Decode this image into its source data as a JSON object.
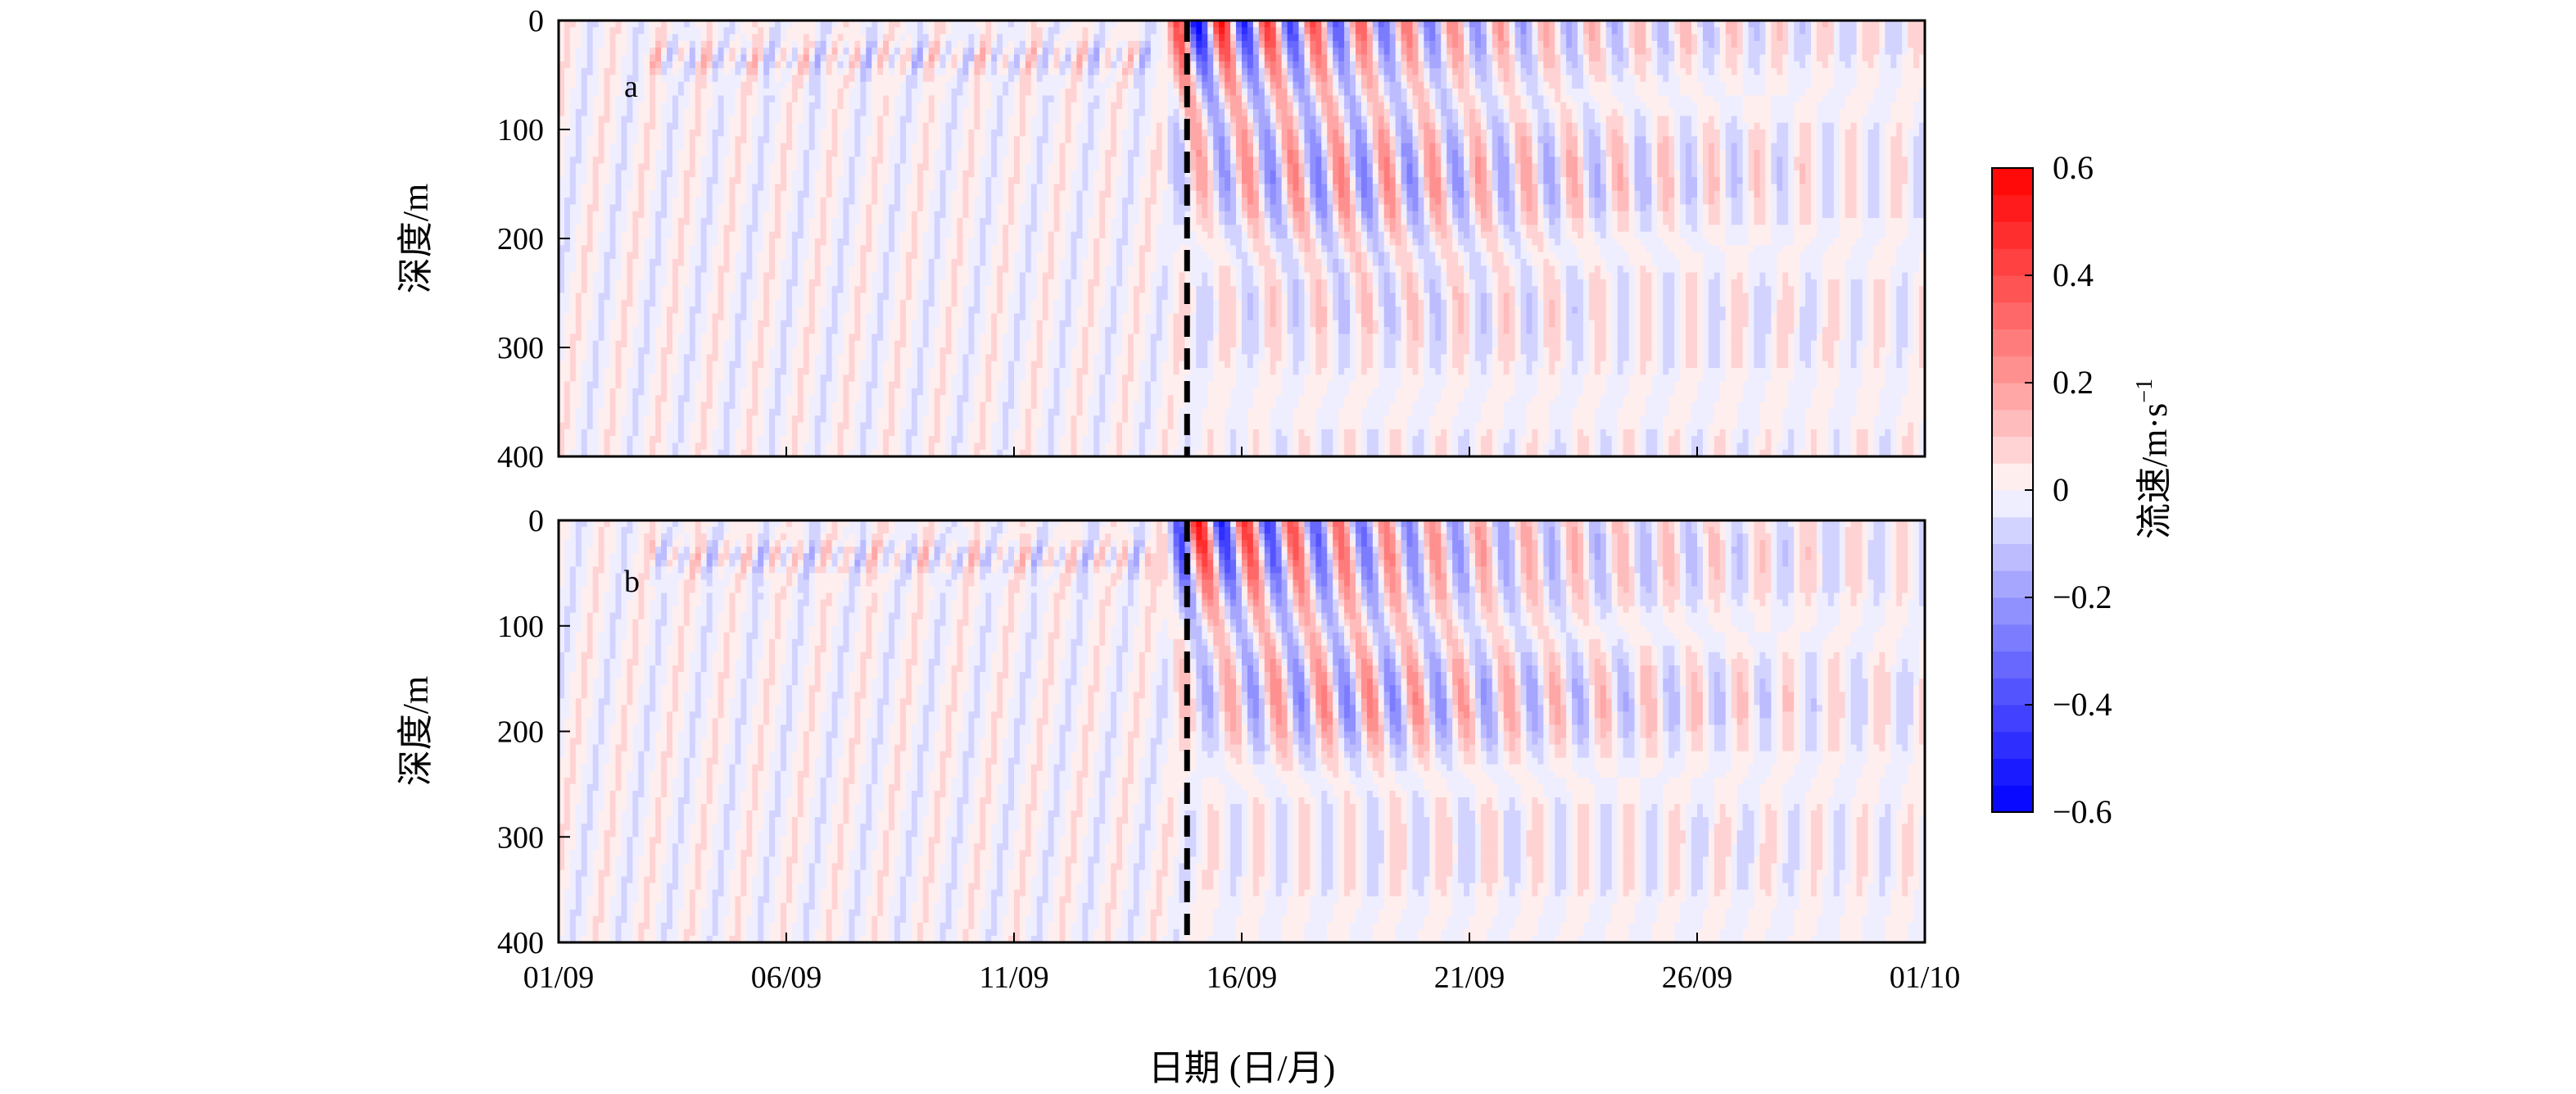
{
  "chart_data": {
    "type": "heatmap",
    "xlabel": "日期 (日/月)",
    "ylabel": "深度/m",
    "x_ticks": [
      "01/09",
      "06/09",
      "11/09",
      "16/09",
      "21/09",
      "26/09",
      "01/10"
    ],
    "xlim_days": [
      0,
      30
    ],
    "ylim": [
      400,
      0
    ],
    "y_ticks": [
      0,
      100,
      200,
      300,
      400
    ],
    "event_line_day": 13.8,
    "panels": [
      {
        "id": "a",
        "label": "a"
      },
      {
        "id": "b",
        "label": "b"
      }
    ],
    "colorbar": {
      "label": "流速/m·s",
      "label_superscript": "−1",
      "range": [
        -0.6,
        0.6
      ],
      "ticks": [
        -0.6,
        -0.4,
        -0.2,
        0,
        0.2,
        0.4,
        0.6
      ],
      "tick_labels": [
        "−0.6",
        "−0.4",
        "−0.2",
        "0",
        "0.2",
        "0.4",
        "0.6"
      ],
      "levels": 24,
      "negative_color": "#0000ff",
      "positive_color": "#ff0000"
    }
  }
}
